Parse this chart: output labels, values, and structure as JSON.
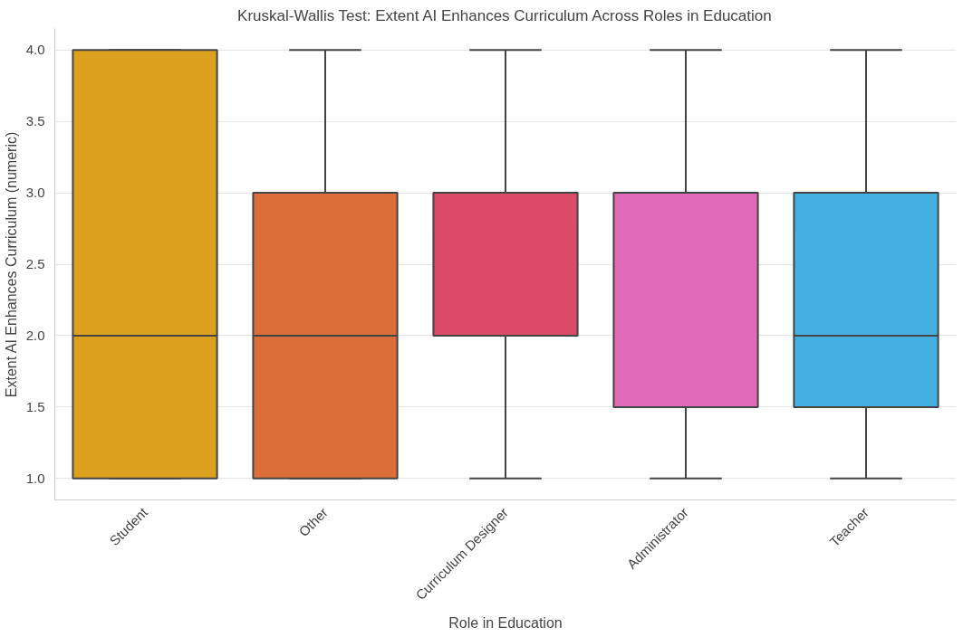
{
  "chart_data": {
    "type": "box",
    "title": "Kruskal-Wallis Test: Extent AI Enhances Curriculum Across Roles in Education",
    "xlabel": "Role in Education",
    "ylabel": "Extent AI Enhances Curriculum (numeric)",
    "categories": [
      "Student",
      "Other",
      "Curriculum Designer",
      "Administrator",
      "Teacher"
    ],
    "colors": [
      "#dca01f",
      "#dc6e3a",
      "#dc4a69",
      "#e16ab8",
      "#44b0e2"
    ],
    "boxes": [
      {
        "low": 1,
        "q1": 1,
        "median": 2,
        "q3": 4,
        "high": 4
      },
      {
        "low": 1,
        "q1": 1,
        "median": 2,
        "q3": 3,
        "high": 4
      },
      {
        "low": 1,
        "q1": 2,
        "median": 3,
        "q3": 3,
        "high": 4
      },
      {
        "low": 1,
        "q1": 1.5,
        "median": 3,
        "q3": 3,
        "high": 4
      },
      {
        "low": 1,
        "q1": 1.5,
        "median": 2,
        "q3": 3,
        "high": 4
      }
    ],
    "ylim": [
      0.85,
      4.15
    ],
    "yticks": [
      {
        "value": 1,
        "label": "1.0"
      },
      {
        "value": 1.5,
        "label": "1.5"
      },
      {
        "value": 2,
        "label": "2.0"
      },
      {
        "value": 2.5,
        "label": "2.5"
      },
      {
        "value": 3,
        "label": "3.0"
      },
      {
        "value": 3.5,
        "label": "3.5"
      },
      {
        "value": 4,
        "label": "4.0"
      }
    ],
    "grid": "y"
  }
}
